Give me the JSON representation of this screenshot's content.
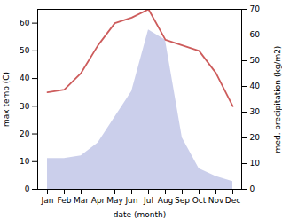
{
  "chart_data": {
    "type": "line",
    "xlabel": "date (month)",
    "ylabel": "max temp (C)",
    "y2label": "med. precipitation (kg/m2)",
    "categories": [
      "Jan",
      "Feb",
      "Mar",
      "Apr",
      "May",
      "Jun",
      "Jul",
      "Aug",
      "Sep",
      "Oct",
      "Nov",
      "Dec"
    ],
    "series": [
      {
        "type": "area",
        "axis": "y2",
        "color": "#c5cae9",
        "values": [
          12,
          12,
          13,
          18,
          28,
          38,
          62,
          58,
          20,
          8,
          5,
          3
        ]
      },
      {
        "type": "line",
        "color": "#cd5c5c",
        "values": [
          35,
          36,
          42,
          52,
          60,
          62,
          65,
          54,
          52,
          50,
          42,
          30
        ]
      }
    ],
    "ylim": [
      0,
      65
    ],
    "yticks": [
      0,
      10,
      20,
      30,
      40,
      50,
      60
    ],
    "y2lim": [
      0,
      70
    ],
    "y2ticks": [
      0,
      10,
      20,
      30,
      40,
      50,
      60,
      70
    ]
  }
}
